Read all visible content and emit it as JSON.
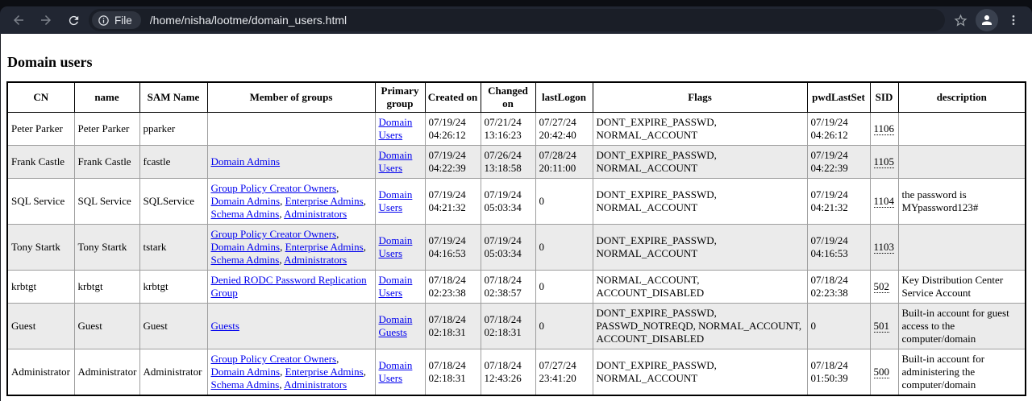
{
  "browser": {
    "toolbar": {
      "security_chip_label": "File",
      "url": "/home/nisha/lootme/domain_users.html"
    }
  },
  "page": {
    "heading": "Domain users",
    "table": {
      "columns": [
        "CN",
        "name",
        "SAM Name",
        "Member of groups",
        "Primary group",
        "Created on",
        "Changed on",
        "lastLogon",
        "Flags",
        "pwdLastSet",
        "SID",
        "description"
      ],
      "rows": [
        {
          "cn": "Peter Parker",
          "name": "Peter Parker",
          "sam_name": "pparker",
          "member_of": [],
          "primary_group": "Domain Users",
          "created_on": "07/19/24 04:26:12",
          "changed_on": "07/21/24 13:16:23",
          "last_logon": "07/27/24 20:42:40",
          "flags": "DONT_EXPIRE_PASSWD, NORMAL_ACCOUNT",
          "pwd_last_set": "07/19/24 04:26:12",
          "sid": "1106",
          "description": ""
        },
        {
          "cn": "Frank Castle",
          "name": "Frank Castle",
          "sam_name": "fcastle",
          "member_of": [
            "Domain Admins"
          ],
          "primary_group": "Domain Users",
          "created_on": "07/19/24 04:22:39",
          "changed_on": "07/26/24 13:18:58",
          "last_logon": "07/28/24 20:11:00",
          "flags": "DONT_EXPIRE_PASSWD, NORMAL_ACCOUNT",
          "pwd_last_set": "07/19/24 04:22:39",
          "sid": "1105",
          "description": ""
        },
        {
          "cn": "SQL Service",
          "name": "SQL Service",
          "sam_name": "SQLService",
          "member_of": [
            "Group Policy Creator Owners",
            "Domain Admins",
            "Enterprise Admins",
            "Schema Admins",
            "Administrators"
          ],
          "primary_group": "Domain Users",
          "created_on": "07/19/24 04:21:32",
          "changed_on": "07/19/24 05:03:34",
          "last_logon": "0",
          "flags": "DONT_EXPIRE_PASSWD, NORMAL_ACCOUNT",
          "pwd_last_set": "07/19/24 04:21:32",
          "sid": "1104",
          "description": "the password is MYpassword123#"
        },
        {
          "cn": "Tony Startk",
          "name": "Tony Startk",
          "sam_name": "tstark",
          "member_of": [
            "Group Policy Creator Owners",
            "Domain Admins",
            "Enterprise Admins",
            "Schema Admins",
            "Administrators"
          ],
          "primary_group": "Domain Users",
          "created_on": "07/19/24 04:16:53",
          "changed_on": "07/19/24 05:03:34",
          "last_logon": "0",
          "flags": "DONT_EXPIRE_PASSWD, NORMAL_ACCOUNT",
          "pwd_last_set": "07/19/24 04:16:53",
          "sid": "1103",
          "description": ""
        },
        {
          "cn": "krbtgt",
          "name": "krbtgt",
          "sam_name": "krbtgt",
          "member_of": [
            "Denied RODC Password Replication Group"
          ],
          "primary_group": "Domain Users",
          "created_on": "07/18/24 02:23:38",
          "changed_on": "07/18/24 02:38:57",
          "last_logon": "0",
          "flags": "NORMAL_ACCOUNT, ACCOUNT_DISABLED",
          "pwd_last_set": "07/18/24 02:23:38",
          "sid": "502",
          "description": "Key Distribution Center Service Account"
        },
        {
          "cn": "Guest",
          "name": "Guest",
          "sam_name": "Guest",
          "member_of": [
            "Guests"
          ],
          "primary_group": "Domain Guests",
          "created_on": "07/18/24 02:18:31",
          "changed_on": "07/18/24 02:18:31",
          "last_logon": "0",
          "flags": "DONT_EXPIRE_PASSWD, PASSWD_NOTREQD, NORMAL_ACCOUNT, ACCOUNT_DISABLED",
          "pwd_last_set": "0",
          "sid": "501",
          "description": "Built-in account for guest access to the computer/domain"
        },
        {
          "cn": "Administrator",
          "name": "Administrator",
          "sam_name": "Administrator",
          "member_of": [
            "Group Policy Creator Owners",
            "Domain Admins",
            "Enterprise Admins",
            "Schema Admins",
            "Administrators"
          ],
          "primary_group": "Domain Users",
          "created_on": "07/18/24 02:18:31",
          "changed_on": "07/18/24 12:43:26",
          "last_logon": "07/27/24 23:41:20",
          "flags": "DONT_EXPIRE_PASSWD, NORMAL_ACCOUNT",
          "pwd_last_set": "07/18/24 01:50:39",
          "sid": "500",
          "description": "Built-in account for administering the computer/domain"
        }
      ]
    }
  },
  "colors": {
    "toolbar_bg": "#212632",
    "omnibox_bg": "#1a1e27",
    "chip_bg": "#2e333e",
    "link": "#0000EE",
    "row_stripe": "#ebebeb",
    "page_bg": "#ffffff"
  }
}
